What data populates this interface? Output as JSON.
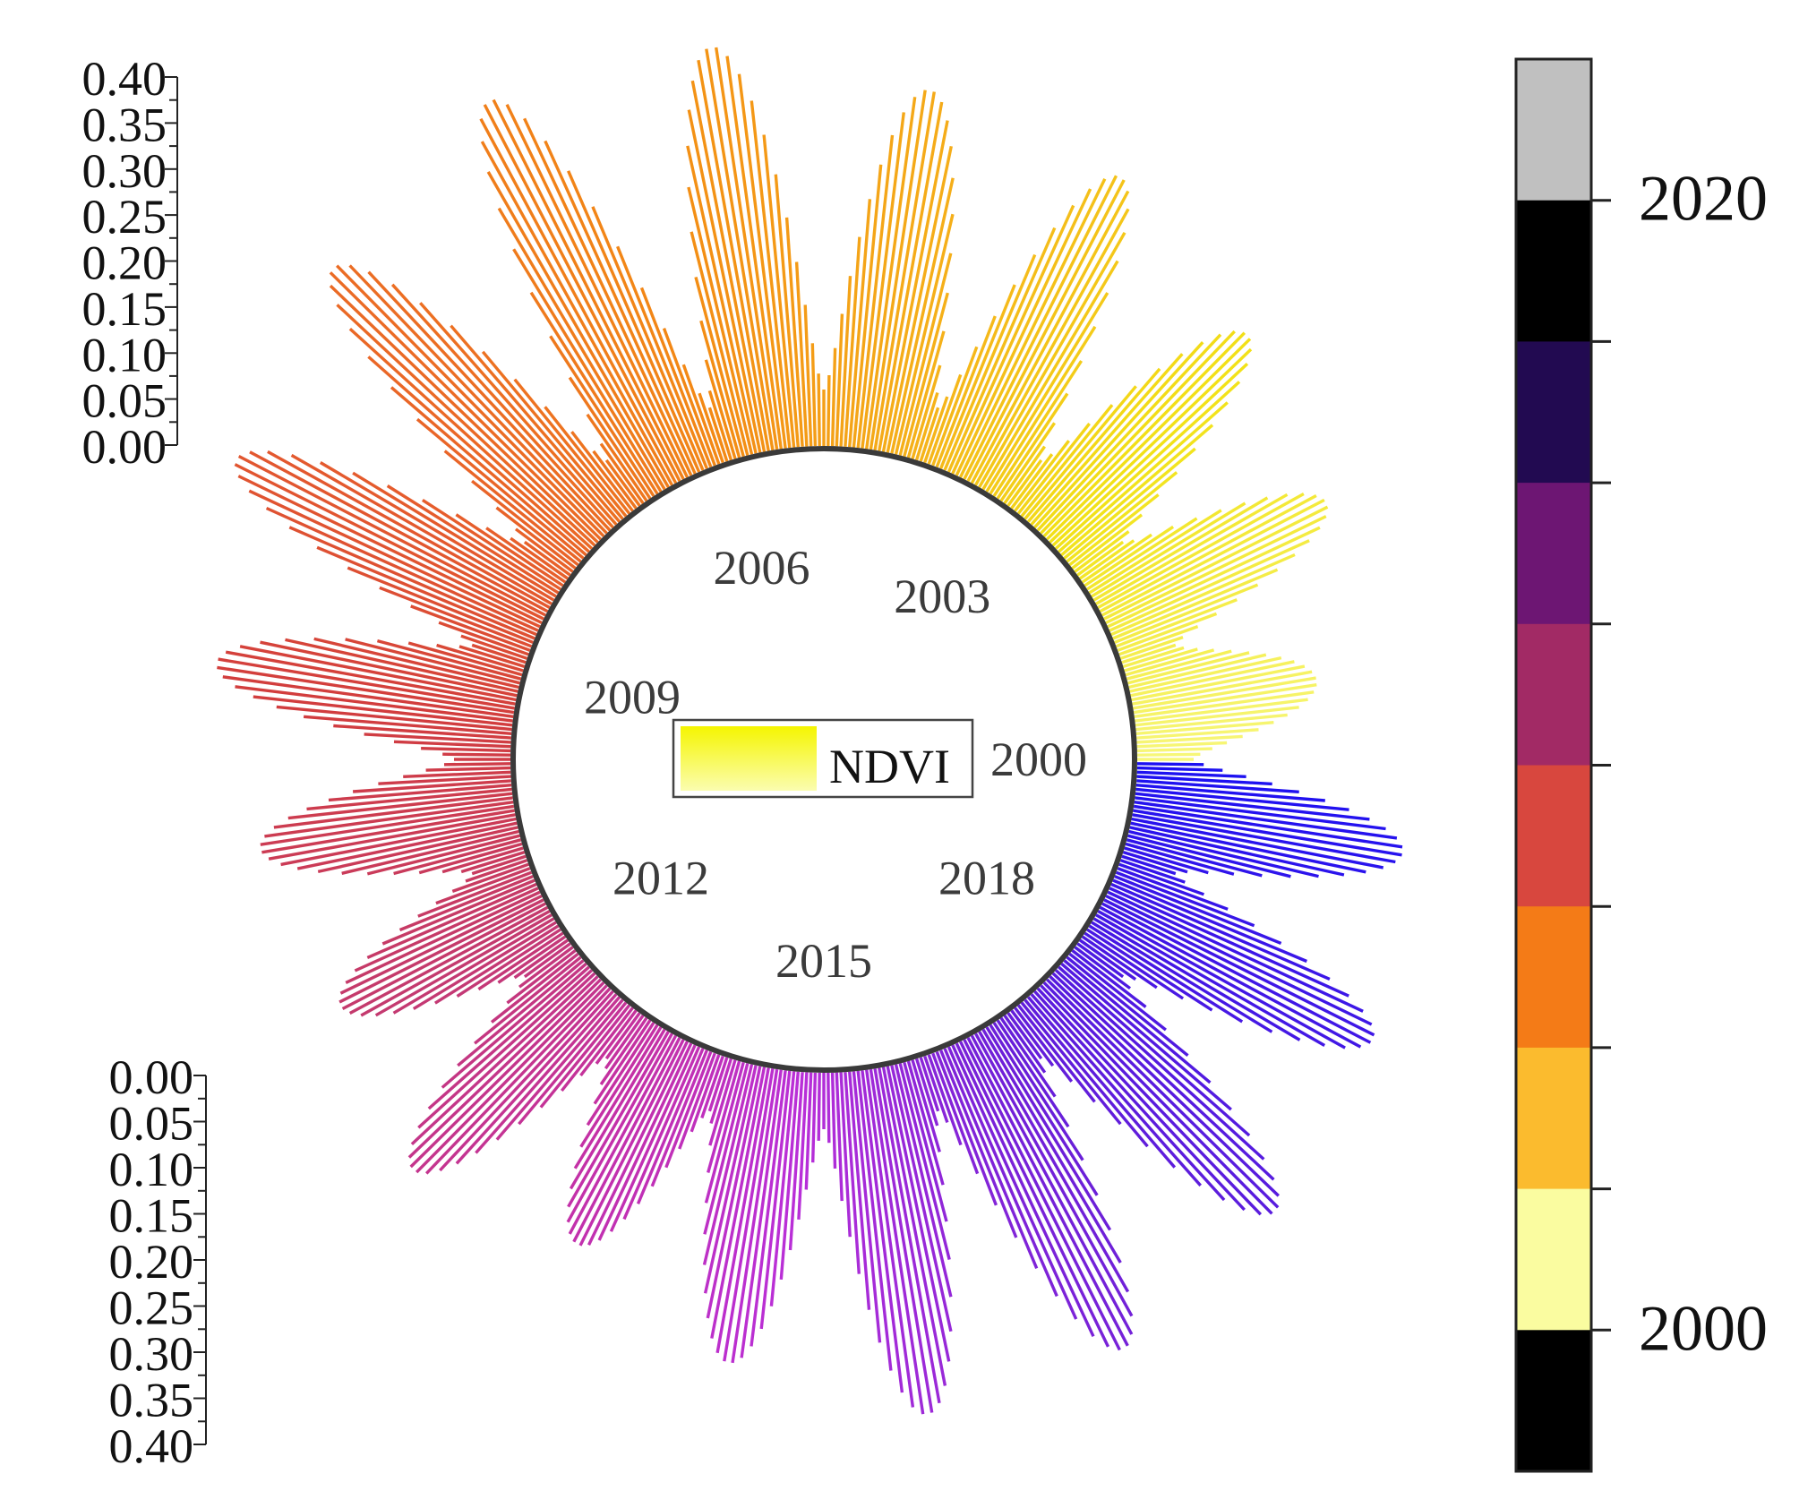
{
  "chart_data": {
    "type": "radial-bar",
    "title": "",
    "legend": {
      "label": "NDVI",
      "placement": "center"
    },
    "radial_axis_upper": {
      "ticks": [
        "0.40",
        "0.35",
        "0.30",
        "0.25",
        "0.20",
        "0.15",
        "0.10",
        "0.05",
        "0.00"
      ],
      "range": [
        0,
        0.4
      ]
    },
    "radial_axis_lower": {
      "ticks": [
        "0.00",
        "0.05",
        "0.10",
        "0.15",
        "0.20",
        "0.25",
        "0.30",
        "0.35",
        "0.40"
      ],
      "range": [
        0,
        0.4
      ]
    },
    "year_labels": [
      "2000",
      "2003",
      "2006",
      "2009",
      "2012",
      "2015",
      "2018"
    ],
    "colorbar": {
      "tick_labels": [
        "2020",
        "2000"
      ],
      "colors": [
        "#c0c0c0",
        "#000000",
        "#220a51",
        "#6d1673",
        "#a22a65",
        "#d8473e",
        "#f47b17",
        "#fbbb2e",
        "#fafca0",
        "#000000"
      ]
    },
    "period": {
      "start_year": 2000,
      "end_year": 2020,
      "samples_per_year": 23
    },
    "series": [
      {
        "peak_values": [
          0.19,
          0.25,
          0.28,
          0.33,
          0.35,
          0.39,
          0.41,
          0.37,
          0.34,
          0.3,
          0.26,
          0.23,
          0.27,
          0.23,
          0.29,
          0.34,
          0.34,
          0.32,
          0.3,
          0.28,
          0.17
        ]
      }
    ]
  }
}
